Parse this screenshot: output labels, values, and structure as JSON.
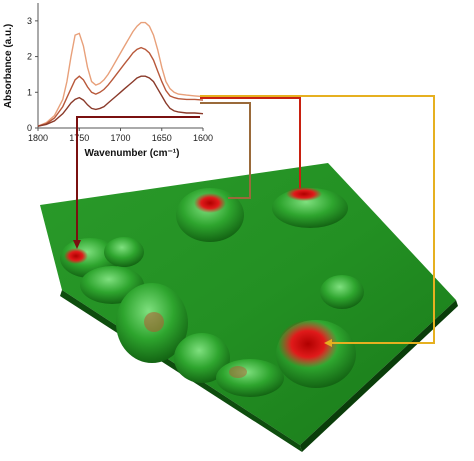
{
  "chart_data": {
    "type": "line",
    "xlabel": "Wavenumber (cm⁻¹)",
    "ylabel": "Absorbance (a.u.)",
    "xlim": [
      1800,
      1600
    ],
    "ylim": [
      0,
      3.5
    ],
    "x_ticks": [
      "1800",
      "1750",
      "1700",
      "1650",
      "1600"
    ],
    "y_ticks": [
      "0",
      "1",
      "2",
      "3"
    ],
    "x": [
      1800,
      1790,
      1780,
      1770,
      1765,
      1760,
      1755,
      1750,
      1745,
      1740,
      1735,
      1730,
      1725,
      1720,
      1715,
      1710,
      1705,
      1700,
      1695,
      1690,
      1685,
      1680,
      1675,
      1670,
      1665,
      1660,
      1655,
      1650,
      1645,
      1640,
      1635,
      1630,
      1620,
      1610,
      1600
    ],
    "series": [
      {
        "color": "#e8a07a",
        "values": [
          0.05,
          0.15,
          0.35,
          0.8,
          1.3,
          2.0,
          2.6,
          2.65,
          2.3,
          1.7,
          1.3,
          1.2,
          1.25,
          1.35,
          1.5,
          1.7,
          1.9,
          2.1,
          2.3,
          2.5,
          2.7,
          2.85,
          2.95,
          2.95,
          2.85,
          2.6,
          2.2,
          1.7,
          1.3,
          1.1,
          1.0,
          0.95,
          0.92,
          0.9,
          0.88
        ]
      },
      {
        "color": "#b8583a",
        "values": [
          0.05,
          0.12,
          0.28,
          0.6,
          0.85,
          1.1,
          1.35,
          1.45,
          1.35,
          1.15,
          1.0,
          0.95,
          1.0,
          1.08,
          1.2,
          1.35,
          1.5,
          1.65,
          1.8,
          1.95,
          2.1,
          2.2,
          2.25,
          2.2,
          2.1,
          1.9,
          1.6,
          1.3,
          1.05,
          0.9,
          0.85,
          0.82,
          0.8,
          0.8,
          0.78
        ]
      },
      {
        "color": "#8a3a2a",
        "values": [
          0.05,
          0.1,
          0.2,
          0.4,
          0.55,
          0.7,
          0.8,
          0.85,
          0.78,
          0.65,
          0.55,
          0.52,
          0.55,
          0.6,
          0.7,
          0.8,
          0.9,
          1.0,
          1.1,
          1.2,
          1.3,
          1.4,
          1.45,
          1.45,
          1.4,
          1.3,
          1.1,
          0.9,
          0.7,
          0.55,
          0.48,
          0.45,
          0.42,
          0.42,
          0.4
        ]
      }
    ]
  },
  "colors": {
    "terrain": "#1f8f1f",
    "hotspot": "#d42020",
    "connector_1": "#7a1010",
    "connector_2": "#9a6a3a",
    "connector_3": "#c82010",
    "connector_4": "#e6b020"
  }
}
